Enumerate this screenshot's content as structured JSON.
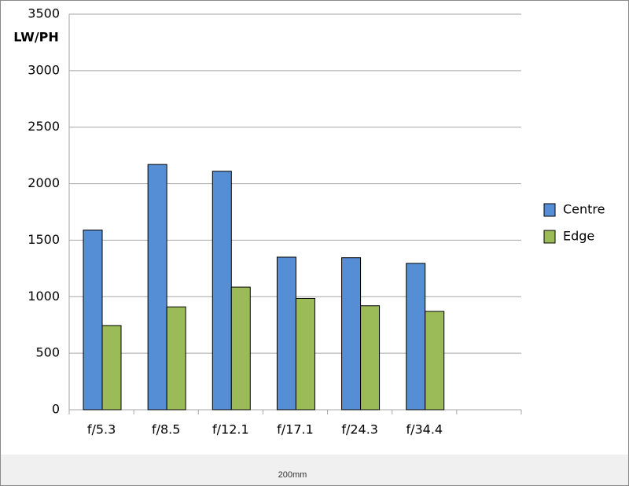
{
  "chart_data": {
    "type": "bar",
    "y_label": "LW/PH",
    "categories": [
      "f/5.3",
      "f/8.5",
      "f/12.1",
      "f/17.1",
      "f/24.3",
      "f/34.4",
      null
    ],
    "series": [
      {
        "name": "Centre",
        "color": "#558ed5",
        "values": [
          1590,
          2170,
          2110,
          1350,
          1345,
          1295,
          null
        ]
      },
      {
        "name": "Edge",
        "color": "#9bbb59",
        "values": [
          745,
          910,
          1085,
          985,
          920,
          870,
          null
        ]
      }
    ],
    "ylim": [
      0,
      3500
    ],
    "yticks": [
      0,
      500,
      1000,
      1500,
      2000,
      2500,
      3000,
      3500
    ],
    "grid": true,
    "legend": "right"
  },
  "footer": {
    "caption": "200mm"
  }
}
